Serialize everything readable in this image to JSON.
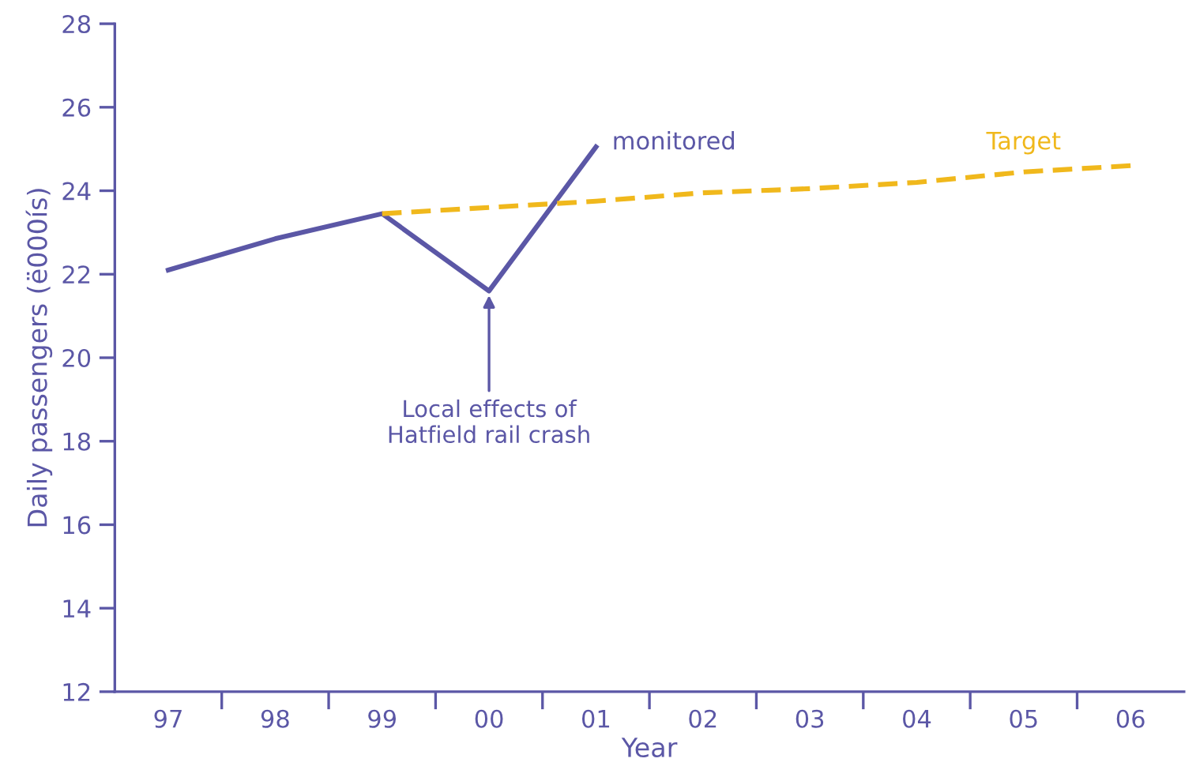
{
  "chart_data": {
    "type": "line",
    "xlabel": "Year",
    "ylabel": "Daily passengers (ë000ís)",
    "categories": [
      "97",
      "98",
      "99",
      "00",
      "01",
      "02",
      "03",
      "04",
      "05",
      "06"
    ],
    "series": [
      {
        "name": "monitored",
        "color": "#5b57a6",
        "line_style": "solid",
        "values": [
          22.1,
          22.85,
          23.45,
          21.6,
          25.05,
          null,
          null,
          null,
          null,
          null
        ]
      },
      {
        "name": "Target",
        "color": "#f0b81c",
        "line_style": "dashed",
        "values": [
          null,
          null,
          23.45,
          23.6,
          23.75,
          23.95,
          24.05,
          24.2,
          24.45,
          24.6
        ]
      }
    ],
    "ylim": [
      12,
      28
    ],
    "yticks": [
      12,
      14,
      16,
      18,
      20,
      22,
      24,
      26,
      28
    ],
    "grid": false,
    "legend": false,
    "marker": "none",
    "annotations": [
      {
        "text": "Local effects of\nHatfield rail crash",
        "x": "00",
        "y": 21.6
      }
    ]
  }
}
